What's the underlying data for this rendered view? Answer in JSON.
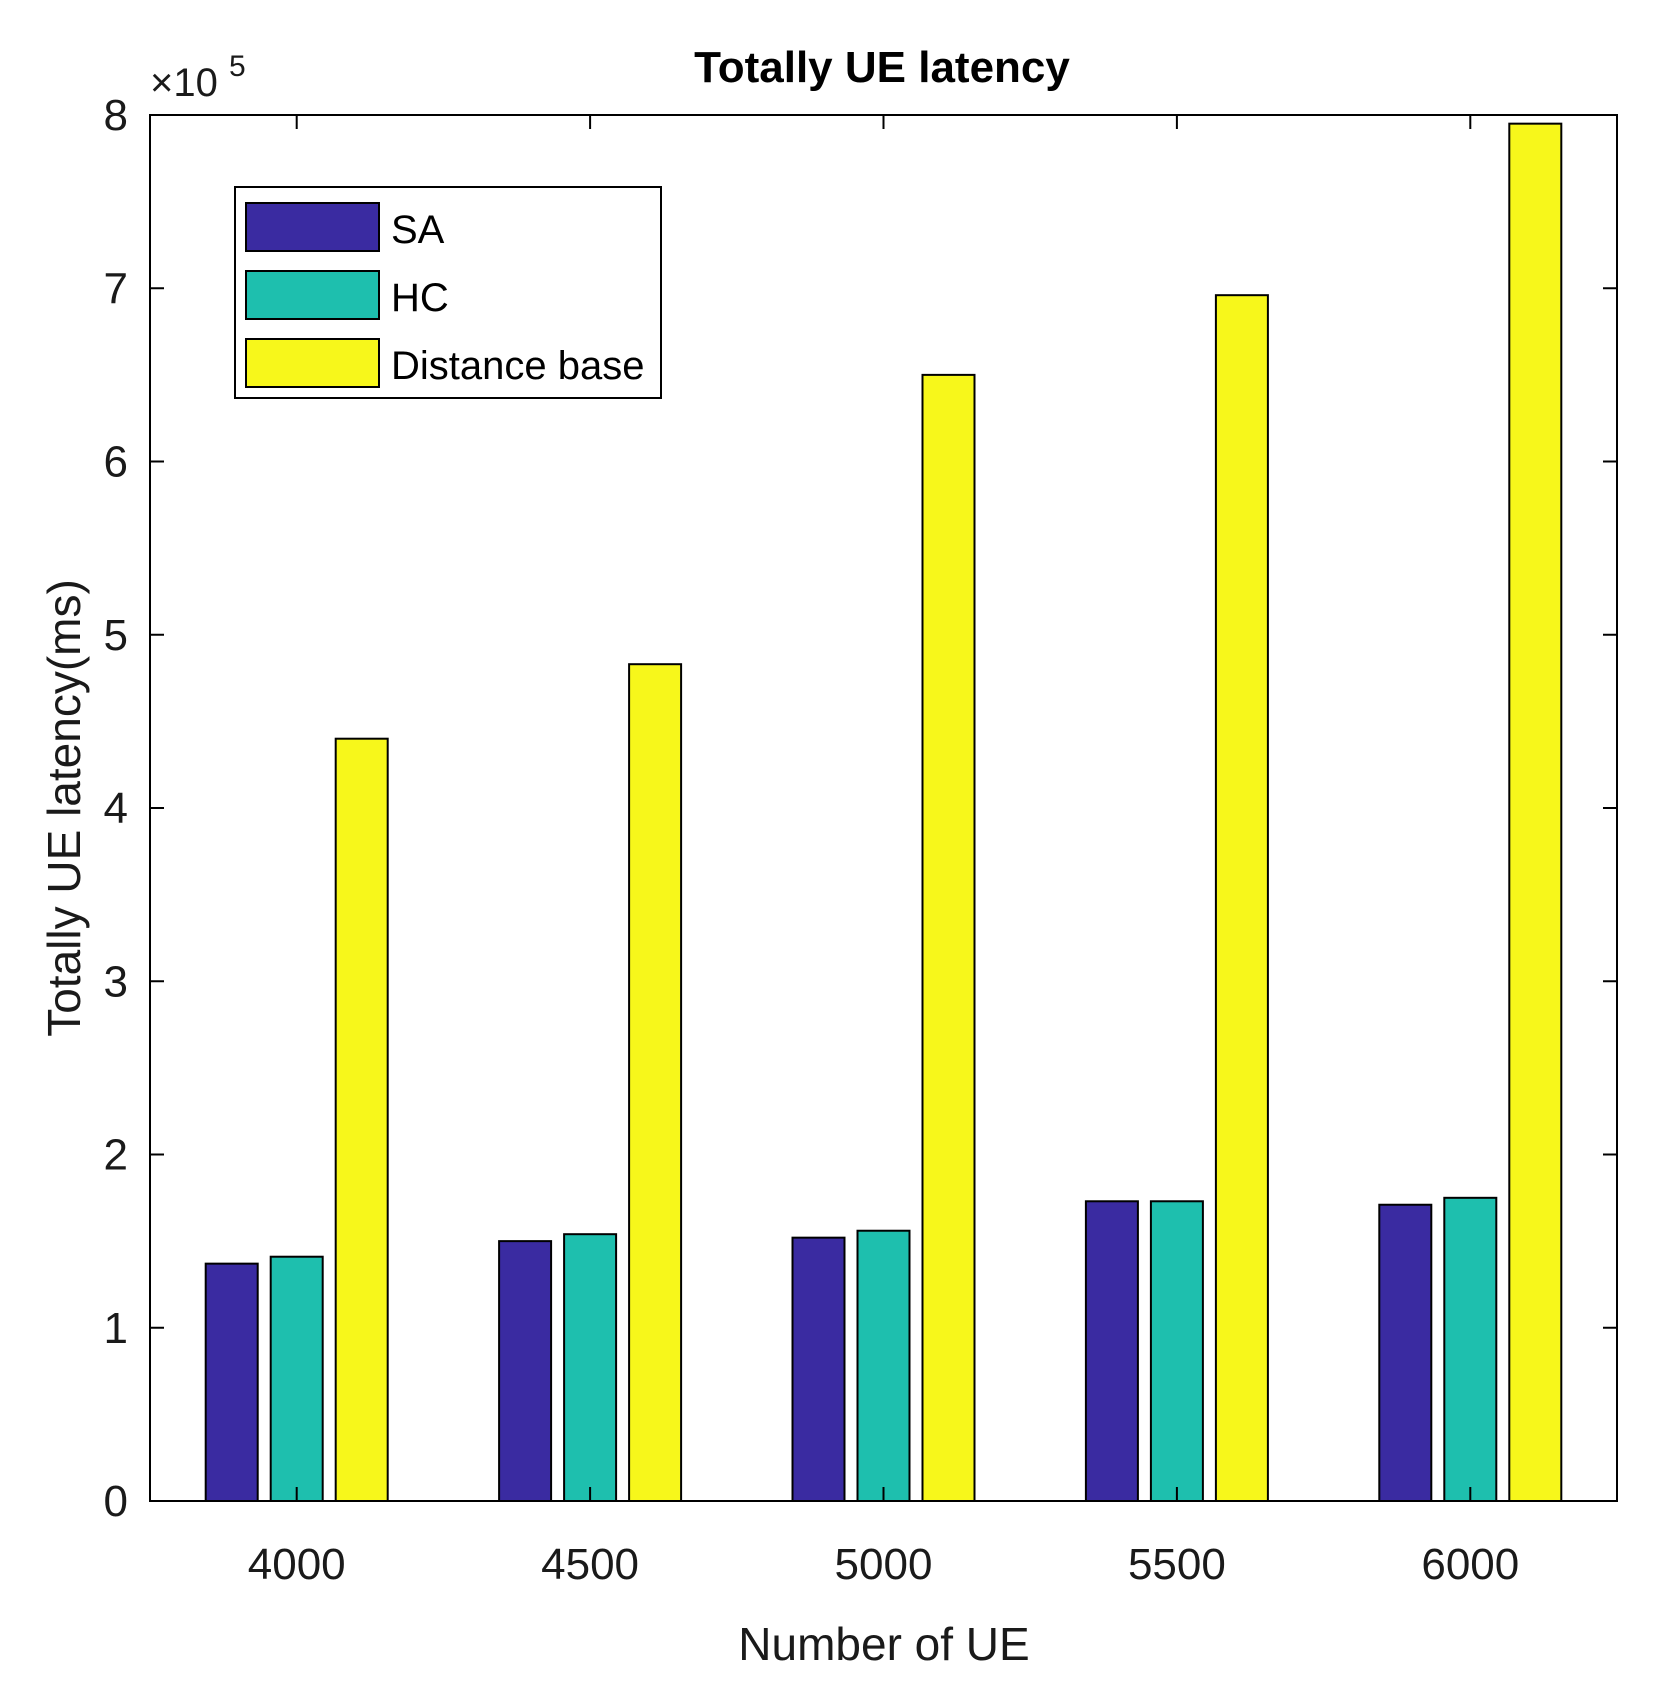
{
  "chart_data": {
    "type": "bar",
    "title": "Totally UE latency",
    "xlabel": "Number of UE",
    "ylabel": "Totally UE latency(ms)",
    "categories": [
      "4000",
      "4500",
      "5000",
      "5500",
      "6000"
    ],
    "series": [
      {
        "name": "SA",
        "color": "#3a2ba1",
        "values": [
          1.37,
          1.5,
          1.52,
          1.73,
          1.71
        ]
      },
      {
        "name": "HC",
        "color": "#1ebfae",
        "values": [
          1.41,
          1.54,
          1.56,
          1.73,
          1.75
        ]
      },
      {
        "name": "Distance base",
        "color": "#f7f71b",
        "values": [
          4.4,
          4.83,
          6.5,
          6.96,
          7.95
        ]
      }
    ],
    "ylim": [
      0,
      8
    ],
    "yticks": [
      0,
      1,
      2,
      3,
      4,
      5,
      6,
      7,
      8
    ],
    "y_multiplier": {
      "base": "×10",
      "exponent": "5"
    },
    "legend": {
      "placement": "top-left"
    },
    "grid": false
  }
}
